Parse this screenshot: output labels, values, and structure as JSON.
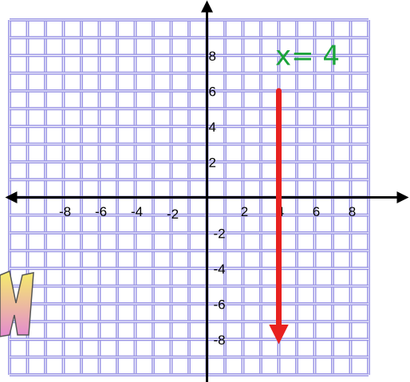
{
  "chart_data": {
    "type": "line",
    "annotation": "x= 4",
    "x": [
      4,
      4
    ],
    "values": [
      6,
      -7.5
    ],
    "color": "#e8211f",
    "xlim": [
      -11,
      9
    ],
    "ylim": [
      -10,
      10
    ],
    "xticks": [
      -8,
      -6,
      -4,
      -2,
      2,
      4,
      6,
      8
    ],
    "yticks": [
      8,
      6,
      4,
      2,
      -2,
      -4,
      -6,
      -8
    ],
    "grid": true
  }
}
